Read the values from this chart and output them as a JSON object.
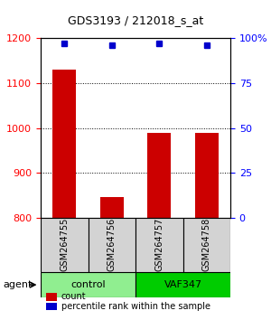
{
  "title": "GDS3193 / 212018_s_at",
  "samples": [
    "GSM264755",
    "GSM264756",
    "GSM264757",
    "GSM264758"
  ],
  "counts": [
    1130,
    845,
    990,
    990
  ],
  "percentile_ranks": [
    97,
    96,
    97,
    96
  ],
  "ylim_left": [
    800,
    1200
  ],
  "ylim_right": [
    0,
    100
  ],
  "yticks_left": [
    800,
    900,
    1000,
    1100,
    1200
  ],
  "yticks_right": [
    0,
    25,
    50,
    75,
    100
  ],
  "yticklabels_right": [
    "0",
    "25",
    "50",
    "75",
    "100%"
  ],
  "bar_color": "#cc0000",
  "dot_color": "#0000cc",
  "groups": [
    {
      "label": "control",
      "indices": [
        0,
        1
      ],
      "color": "#90ee90"
    },
    {
      "label": "VAF347",
      "indices": [
        2,
        3
      ],
      "color": "#00cc00"
    }
  ],
  "agent_label": "agent",
  "legend_count_label": "count",
  "legend_pct_label": "percentile rank within the sample",
  "bar_width": 0.5,
  "bg_color": "#ffffff",
  "label_area_color": "#d3d3d3",
  "grid_color": "#000000"
}
